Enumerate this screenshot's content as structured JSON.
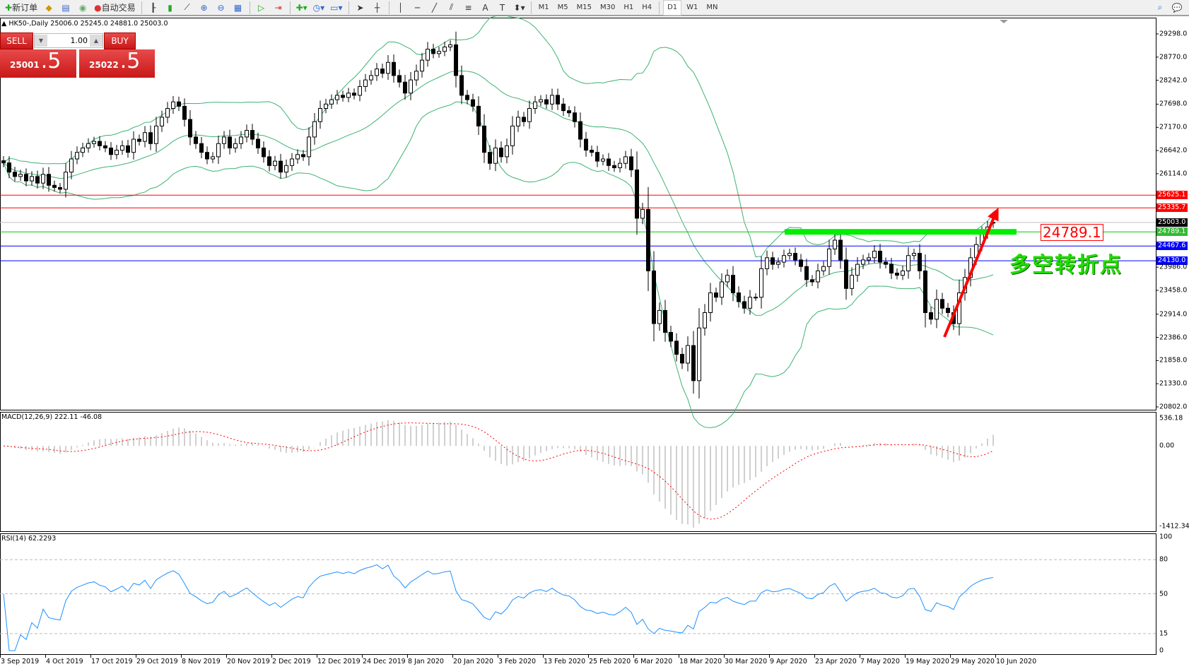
{
  "toolbar": {
    "new_order_label": "新订单",
    "auto_trading_label": "自动交易",
    "icons": [
      "new-order-icon",
      "market-watch-icon",
      "navigator-icon",
      "signal-icon",
      "auto-trading-icon",
      "bar-chart-icon",
      "candlestick-icon",
      "line-chart-icon",
      "zoom-in-icon",
      "zoom-out-icon",
      "tile-windows-icon",
      "auto-scroll-icon",
      "chart-shift-icon",
      "indicators-icon",
      "periods-clock-icon",
      "templates-icon",
      "cursor-icon",
      "crosshair-icon",
      "vertical-line-icon",
      "horizontal-line-icon",
      "trendline-icon",
      "equidistant-channel-icon",
      "fibonacci-icon",
      "text-icon",
      "text-label-icon",
      "arrows-icon",
      "search-icon",
      "chat-icon"
    ],
    "timeframes": [
      "M1",
      "M5",
      "M15",
      "M30",
      "H1",
      "H4",
      "D1",
      "W1",
      "MN"
    ],
    "active_timeframe": "D1"
  },
  "chart": {
    "title": "HK50-,Daily  25006.0 25245.0 24881.0 25003.0"
  },
  "trade_panel": {
    "sell_label": "SELL",
    "buy_label": "BUY",
    "lot": "1.00",
    "sell_price_main": "25001",
    "sell_price_frac": ".5",
    "buy_price_main": "25022",
    "buy_price_frac": ".5",
    "color": "#d42020"
  },
  "annotations": {
    "level_box": "24789.1",
    "note": "多空转折点"
  },
  "chart_data": [
    {
      "type": "candlestick",
      "symbol": "HK50-",
      "timeframe": "Daily",
      "ylim": [
        20802.0,
        29298.0
      ],
      "y_ticks": [
        "29298.0",
        "28770.0",
        "28242.0",
        "27698.0",
        "27170.0",
        "26642.0",
        "26114.0",
        "23986.0",
        "23458.0",
        "22914.0",
        "22386.0",
        "21858.0",
        "21330.0",
        "20802.0"
      ],
      "closes": [
        26360,
        26150,
        26050,
        26100,
        25950,
        26050,
        25900,
        26100,
        25850,
        25800,
        25760,
        26150,
        26450,
        26600,
        26700,
        26800,
        26850,
        26750,
        26700,
        26550,
        26650,
        26750,
        26600,
        26900,
        26850,
        27050,
        26800,
        27200,
        27400,
        27600,
        27750,
        27650,
        27350,
        26950,
        26800,
        26600,
        26450,
        26500,
        26800,
        26950,
        26700,
        26800,
        26950,
        27100,
        26900,
        26700,
        26500,
        26300,
        26400,
        26150,
        26300,
        26450,
        26550,
        26500,
        26950,
        27300,
        27600,
        27700,
        27800,
        27900,
        27850,
        27950,
        27900,
        28100,
        28250,
        28350,
        28500,
        28400,
        28650,
        28350,
        28200,
        27950,
        28250,
        28450,
        28700,
        28950,
        28850,
        28900,
        29000,
        29050,
        28350,
        27900,
        27800,
        27650,
        27200,
        26600,
        26350,
        26700,
        26500,
        26750,
        27200,
        27400,
        27300,
        27600,
        27750,
        27800,
        27700,
        27900,
        27700,
        27550,
        27500,
        27300,
        26900,
        26650,
        26600,
        26400,
        26450,
        26300,
        26250,
        26350,
        26500,
        26200,
        25100,
        25300,
        23900,
        22700,
        23000,
        22500,
        22300,
        22000,
        21800,
        22200,
        21400,
        22600,
        22950,
        23400,
        23300,
        23650,
        23800,
        23400,
        23200,
        23050,
        23300,
        23300,
        23950,
        24200,
        24050,
        24100,
        24250,
        24300,
        24150,
        24000,
        23700,
        23650,
        23900,
        24000,
        24400,
        24600,
        24150,
        23500,
        23800,
        24050,
        24150,
        24200,
        24350,
        24100,
        24050,
        23850,
        23800,
        23900,
        24250,
        24300,
        23900,
        22950,
        22800,
        23250,
        23050,
        22950,
        22700,
        23400,
        23750,
        24200,
        24500,
        24750,
        24900,
        25003
      ],
      "last_bar": {
        "open": 25006.0,
        "high": 25245.0,
        "low": 24881.0,
        "close": 25003.0
      },
      "overlays": [
        "Bollinger Bands"
      ],
      "band_color": "#3cb371",
      "x_labels": [
        "3 Sep 2019",
        "4 Oct 2019",
        "17 Oct 2019",
        "29 Oct 2019",
        "8 Nov 2019",
        "20 Nov 2019",
        "2 Dec 2019",
        "12 Dec 2019",
        "24 Dec 2019",
        "8 Jan 2020",
        "20 Jan 2020",
        "3 Feb 2020",
        "13 Feb 2020",
        "25 Feb 2020",
        "6 Mar 2020",
        "18 Mar 2020",
        "30 Mar 2020",
        "9 Apr 2020",
        "23 Apr 2020",
        "7 May 2020",
        "19 May 2020",
        "29 May 2020",
        "10 Jun 2020"
      ],
      "horizontal_levels": [
        {
          "value": 25625.1,
          "label": "25625.1",
          "color": "#ff0000"
        },
        {
          "value": 25335.7,
          "label": "25335.7",
          "color": "#ff0000"
        },
        {
          "value": 25003.0,
          "label": "25003.0",
          "color": "#c0c0c0",
          "tag_color": "#000000"
        },
        {
          "value": 24789.1,
          "label": "24789.1",
          "color": "#00cc00",
          "tag_color": "#33bb33"
        },
        {
          "value": 24467.6,
          "label": "24467.6",
          "color": "#0000ff"
        },
        {
          "value": 24130.0,
          "label": "24130.0",
          "color": "#0000ff"
        }
      ],
      "trend_arrow_color": "#ff0000",
      "zone_color": "#00ee00"
    },
    {
      "type": "bar",
      "title": "MACD(12,26,9) 222.11 -46.08",
      "ylim": [
        -1412.34,
        536.18
      ],
      "y_ticks": [
        "536.18",
        "0.00",
        "-1412.34"
      ],
      "histogram_color": "#c0c0c0",
      "signal_color": "#ff0000"
    },
    {
      "type": "line",
      "title": "RSI(14) 62.2293",
      "ylim": [
        0,
        100
      ],
      "y_ticks": [
        "100",
        "80",
        "50",
        "15",
        "0"
      ],
      "levels": [
        80,
        50,
        15
      ],
      "line_color": "#1e90ff"
    }
  ]
}
